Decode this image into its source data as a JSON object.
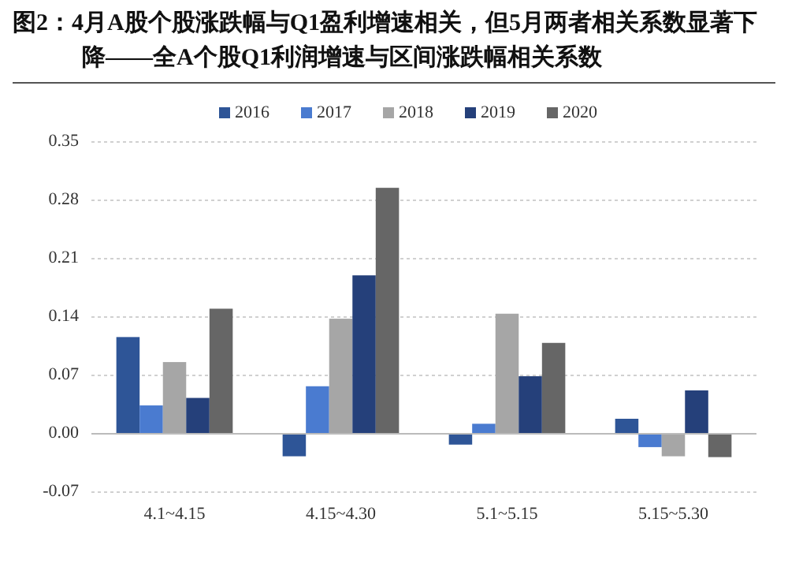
{
  "chart_data": {
    "type": "bar",
    "title": "图2：4月A股个股涨跌幅与Q1盈利增速相关，但5月两者相关系数显著下降——全A个股Q1利润增速与区间涨跌幅相关系数",
    "categories": [
      "4.1~4.15",
      "4.15~4.30",
      "5.1~5.15",
      "5.15~5.30"
    ],
    "series": [
      {
        "name": "2016",
        "color": "#2e5597",
        "values": [
          0.116,
          -0.027,
          -0.013,
          0.018
        ]
      },
      {
        "name": "2017",
        "color": "#4a7bd0",
        "values": [
          0.034,
          0.057,
          0.012,
          -0.016
        ]
      },
      {
        "name": "2018",
        "color": "#a6a6a6",
        "values": [
          0.086,
          0.138,
          0.144,
          -0.027
        ]
      },
      {
        "name": "2019",
        "color": "#25407a",
        "values": [
          0.043,
          0.19,
          0.069,
          0.052
        ]
      },
      {
        "name": "2020",
        "color": "#666666",
        "values": [
          0.15,
          0.295,
          0.109,
          -0.028
        ]
      }
    ],
    "ylim": [
      -0.07,
      0.35
    ],
    "yticks": [
      {
        "value": -0.07,
        "label": "-0.07"
      },
      {
        "value": 0,
        "label": "0.00"
      },
      {
        "value": 0.07,
        "label": "0.07"
      },
      {
        "value": 0.14,
        "label": "0.14"
      },
      {
        "value": 0.21,
        "label": "0.21"
      },
      {
        "value": 0.28,
        "label": "0.28"
      },
      {
        "value": 0.35,
        "label": "0.35"
      }
    ],
    "grid": "y",
    "legend": "top"
  }
}
